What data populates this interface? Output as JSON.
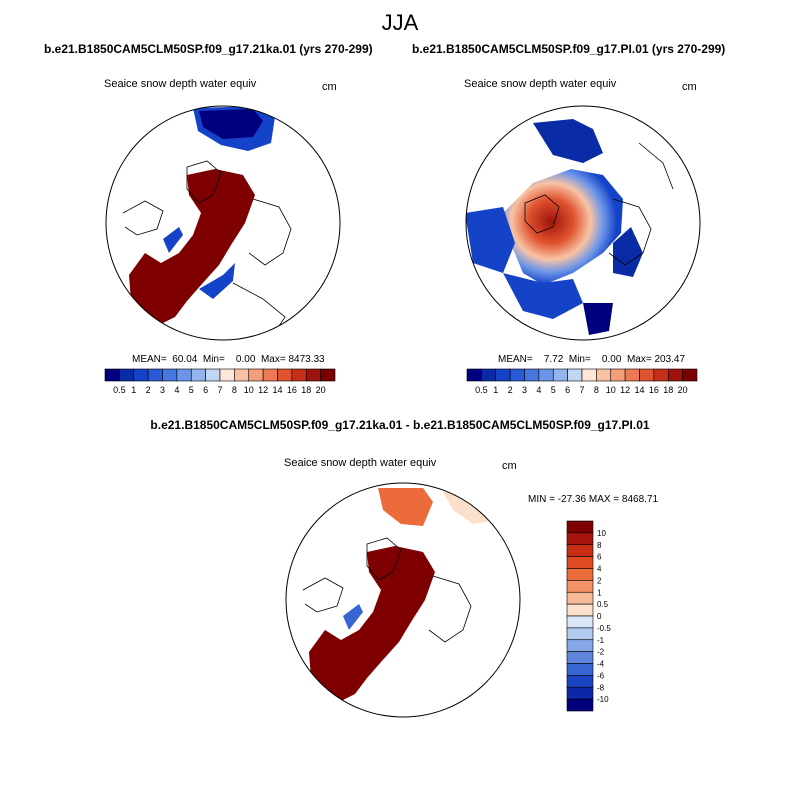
{
  "page": {
    "season": "JJA",
    "diff_title": "b.e21.B1850CAM5CLM50SP.f09_g17.21ka.01 - b.e21.B1850CAM5CLM50SP.f09_g17.PI.01"
  },
  "panels": [
    {
      "case_title": "b.e21.B1850CAM5CLM50SP.f09_g17.21ka.01 (yrs 270-299)",
      "var_label": "Seaice snow depth water equiv",
      "units": "cm",
      "stats_text": "MEAN=  60.04  Min=    0.00  Max= 8473.33",
      "mean": 60.04,
      "min": 0.0,
      "max": 8473.33
    },
    {
      "case_title": "b.e21.B1850CAM5CLM50SP.f09_g17.PI.01 (yrs 270-299)",
      "var_label": "Seaice snow depth water equiv",
      "units": "cm",
      "stats_text": "MEAN=    7.72  Min=    0.00  Max= 203.47",
      "mean": 7.72,
      "min": 0.0,
      "max": 203.47
    },
    {
      "case_title": "",
      "var_label": "Seaice snow depth water equiv",
      "units": "cm",
      "range_text": "MIN = -27.36 MAX = 8468.71",
      "min": -27.36,
      "max": 8468.71
    }
  ],
  "colorbar_abs": {
    "labels": [
      "0.5",
      "1",
      "2",
      "3",
      "4",
      "5",
      "6",
      "7",
      "8",
      "10",
      "12",
      "14",
      "16",
      "18",
      "20"
    ],
    "colors": [
      "#00007f",
      "#0a2ba6",
      "#1543c8",
      "#2a5ad8",
      "#4677e0",
      "#6b95e8",
      "#94b4ee",
      "#c0d6f3",
      "#fde6d9",
      "#f8c3a5",
      "#f39f7a",
      "#ec7a55",
      "#e0532f",
      "#c6301a",
      "#9e130b",
      "#7a0000"
    ]
  },
  "colorbar_diff": {
    "labels": [
      "10",
      "8",
      "6",
      "4",
      "2",
      "1",
      "0.5",
      "0",
      "-0.5",
      "-1",
      "-2",
      "-4",
      "-6",
      "-8",
      "-10"
    ],
    "colors": [
      "#7f0000",
      "#a8140c",
      "#c92d14",
      "#e04a22",
      "#ec6b3a",
      "#f39366",
      "#f7b995",
      "#fbe0cc",
      "#d9e6f7",
      "#b0c9ef",
      "#86a7e6",
      "#5d86dc",
      "#3765d2",
      "#1b44c2",
      "#0c27a8",
      "#00007f"
    ]
  },
  "legend_colors": {
    "land_outline": "#000000",
    "dark_red": "#7f0000",
    "dark_blue": "#00007f"
  }
}
